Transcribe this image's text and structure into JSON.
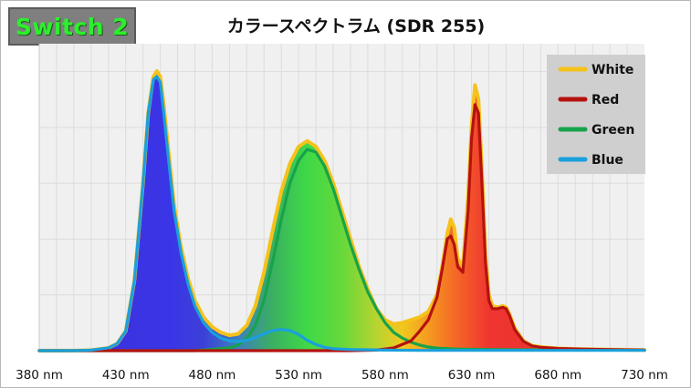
{
  "badge": {
    "label": "Switch 2",
    "color": "#2cf02c"
  },
  "chart_data": {
    "type": "area",
    "title": "カラースペクトラム (SDR 255)",
    "xlabel": "",
    "ylabel": "",
    "x_unit": "nm",
    "xlim": [
      380,
      730
    ],
    "ylim": [
      0,
      1.0
    ],
    "x_ticks": [
      {
        "value": 380,
        "label": "380 nm"
      },
      {
        "value": 430,
        "label": "430 nm"
      },
      {
        "value": 480,
        "label": "480 nm"
      },
      {
        "value": 530,
        "label": "530 nm"
      },
      {
        "value": 580,
        "label": "580 nm"
      },
      {
        "value": 630,
        "label": "630 nm"
      },
      {
        "value": 680,
        "label": "680 nm"
      },
      {
        "value": 730,
        "label": "730 nm"
      }
    ],
    "grid": true,
    "legend_position": "top-right",
    "series": [
      {
        "name": "White",
        "color": "#f5c21b",
        "x": [
          380,
          400,
          410,
          420,
          425,
          430,
          435,
          440,
          443,
          446,
          448,
          450,
          452,
          455,
          458,
          462,
          466,
          470,
          475,
          480,
          485,
          490,
          495,
          500,
          505,
          510,
          515,
          520,
          525,
          530,
          535,
          540,
          545,
          550,
          555,
          560,
          565,
          570,
          575,
          580,
          585,
          590,
          595,
          600,
          605,
          610,
          613,
          616,
          618,
          620,
          622,
          625,
          628,
          630,
          632,
          634,
          636,
          638,
          640,
          642,
          645,
          648,
          650,
          652,
          655,
          660,
          665,
          670,
          680,
          690,
          700,
          720,
          730
        ],
        "values": [
          0,
          0,
          0.002,
          0.01,
          0.025,
          0.07,
          0.25,
          0.6,
          0.85,
          0.98,
          1.0,
          0.98,
          0.88,
          0.7,
          0.52,
          0.37,
          0.26,
          0.18,
          0.12,
          0.085,
          0.065,
          0.055,
          0.06,
          0.09,
          0.16,
          0.28,
          0.43,
          0.57,
          0.67,
          0.73,
          0.75,
          0.73,
          0.68,
          0.6,
          0.5,
          0.4,
          0.3,
          0.22,
          0.15,
          0.11,
          0.095,
          0.1,
          0.11,
          0.12,
          0.14,
          0.2,
          0.3,
          0.42,
          0.47,
          0.44,
          0.33,
          0.3,
          0.55,
          0.8,
          0.95,
          0.9,
          0.65,
          0.35,
          0.2,
          0.16,
          0.155,
          0.16,
          0.155,
          0.13,
          0.08,
          0.035,
          0.018,
          0.013,
          0.008,
          0.006,
          0.005,
          0.003,
          0.002
        ]
      },
      {
        "name": "Red",
        "color": "#b5120f",
        "x": [
          380,
          560,
          575,
          585,
          595,
          600,
          605,
          610,
          613,
          616,
          618,
          620,
          622,
          625,
          628,
          630,
          632,
          634,
          636,
          638,
          640,
          642,
          645,
          648,
          650,
          652,
          655,
          660,
          665,
          670,
          680,
          690,
          700,
          720,
          730
        ],
        "values": [
          0,
          0,
          0.002,
          0.01,
          0.035,
          0.07,
          0.11,
          0.19,
          0.29,
          0.4,
          0.41,
          0.38,
          0.3,
          0.28,
          0.5,
          0.76,
          0.88,
          0.85,
          0.6,
          0.32,
          0.18,
          0.15,
          0.15,
          0.155,
          0.15,
          0.125,
          0.075,
          0.033,
          0.017,
          0.012,
          0.008,
          0.006,
          0.005,
          0.003,
          0.002
        ]
      },
      {
        "name": "Green",
        "color": "#17a34a",
        "x": [
          380,
          470,
          480,
          490,
          495,
          500,
          505,
          510,
          515,
          520,
          525,
          530,
          535,
          540,
          545,
          550,
          555,
          560,
          565,
          570,
          575,
          580,
          585,
          590,
          595,
          600,
          605,
          610,
          620,
          630,
          660,
          730
        ],
        "values": [
          0,
          0,
          0.005,
          0.01,
          0.02,
          0.045,
          0.09,
          0.18,
          0.32,
          0.47,
          0.6,
          0.68,
          0.72,
          0.71,
          0.66,
          0.58,
          0.48,
          0.38,
          0.29,
          0.21,
          0.15,
          0.1,
          0.065,
          0.045,
          0.03,
          0.02,
          0.013,
          0.009,
          0.006,
          0.005,
          0.003,
          0.002
        ]
      },
      {
        "name": "Blue",
        "color": "#1aa0dc",
        "x": [
          380,
          400,
          410,
          420,
          425,
          430,
          435,
          440,
          443,
          446,
          448,
          450,
          452,
          455,
          458,
          462,
          466,
          470,
          475,
          480,
          485,
          490,
          495,
          500,
          505,
          510,
          515,
          520,
          525,
          530,
          535,
          540,
          545,
          550,
          560,
          580,
          600,
          630,
          700,
          730
        ],
        "values": [
          0,
          0,
          0.002,
          0.01,
          0.025,
          0.07,
          0.25,
          0.6,
          0.85,
          0.97,
          0.98,
          0.96,
          0.85,
          0.67,
          0.5,
          0.35,
          0.24,
          0.16,
          0.1,
          0.065,
          0.045,
          0.035,
          0.033,
          0.037,
          0.047,
          0.06,
          0.072,
          0.076,
          0.072,
          0.058,
          0.037,
          0.022,
          0.012,
          0.007,
          0.004,
          0.002,
          0.001,
          0.001,
          0.001,
          0.001
        ]
      }
    ]
  }
}
